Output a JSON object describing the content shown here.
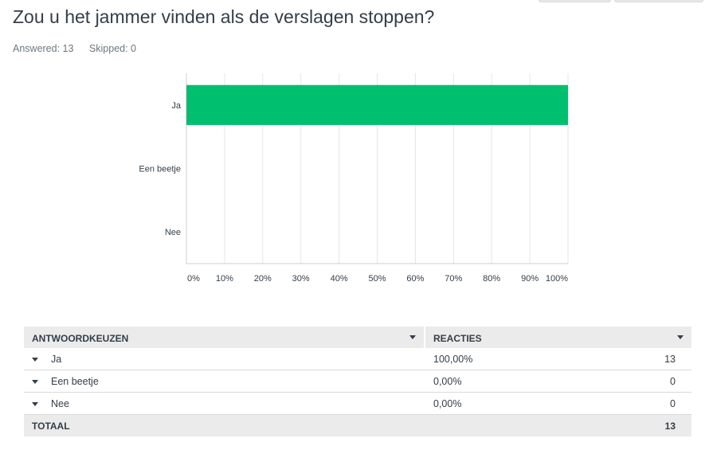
{
  "question": {
    "title": "Zou u het jammer vinden als de verslagen stoppen?",
    "answered": "Answered: 13",
    "skipped": "Skipped: 0"
  },
  "chart_data": {
    "type": "bar",
    "orientation": "horizontal",
    "categories": [
      "Ja",
      "Een beetje",
      "Nee"
    ],
    "values": [
      100,
      0,
      0
    ],
    "xlim": [
      0,
      100
    ],
    "xticks": [
      "0%",
      "10%",
      "20%",
      "30%",
      "40%",
      "50%",
      "60%",
      "70%",
      "80%",
      "90%",
      "100%"
    ],
    "title": "",
    "xlabel": "",
    "ylabel": "",
    "grid": "vertical",
    "legend": "none",
    "bar_color": "#00bf6f"
  },
  "table": {
    "headers": {
      "answer": "ANTWOORDKEUZEN",
      "responses": "REACTIES"
    },
    "rows": [
      {
        "label": "Ja",
        "percent": "100,00%",
        "count": "13"
      },
      {
        "label": "Een beetje",
        "percent": "0,00%",
        "count": "0"
      },
      {
        "label": "Nee",
        "percent": "0,00%",
        "count": "0"
      }
    ],
    "total": {
      "label": "TOTAAL",
      "count": "13"
    }
  }
}
